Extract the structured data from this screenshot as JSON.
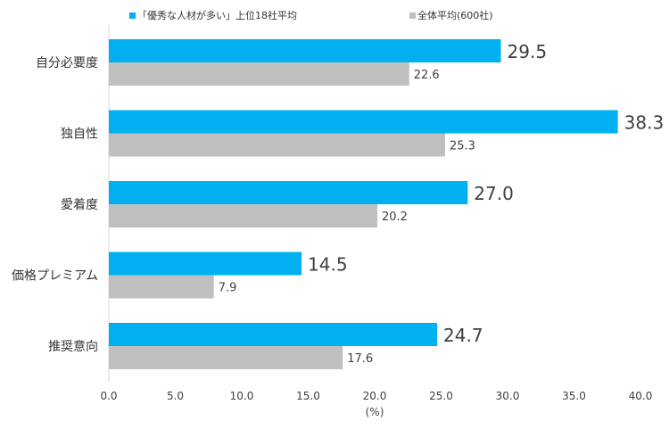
{
  "chart_data": {
    "type": "bar",
    "orientation": "horizontal",
    "categories": [
      "自分必要度",
      "独自性",
      "愛着度",
      "価格プレミアム",
      "推奨意向"
    ],
    "series": [
      {
        "name": "「優秀な人材が多い」上位18社平均",
        "color": "#00b0f0",
        "values": [
          29.5,
          38.3,
          27.0,
          14.5,
          24.7
        ]
      },
      {
        "name": "全体平均(600社)",
        "color": "#bfbfbf",
        "values": [
          22.6,
          25.3,
          20.2,
          7.9,
          17.6
        ]
      }
    ],
    "xlim": [
      0,
      40
    ],
    "xticks": [
      "0.0",
      "5.0",
      "10.0",
      "15.0",
      "20.0",
      "25.0",
      "30.0",
      "35.0",
      "40.0"
    ],
    "xunit": "(%)",
    "grid": false,
    "legend": "top"
  }
}
